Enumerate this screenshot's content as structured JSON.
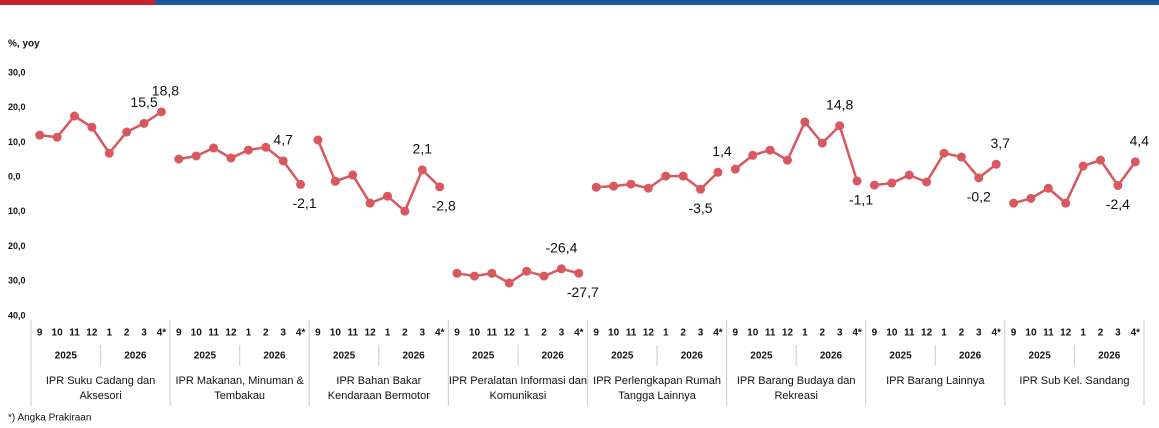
{
  "chart_data": {
    "type": "line",
    "y_label": "%, yoy",
    "ylim": [
      -40,
      30
    ],
    "yticks": [
      {
        "value": 30,
        "label": "30,0"
      },
      {
        "value": 20,
        "label": "20,0"
      },
      {
        "value": 10,
        "label": "10,0"
      },
      {
        "value": 0,
        "label": "0,0"
      },
      {
        "value": -10,
        "label": "10,0"
      },
      {
        "value": -20,
        "label": "20,0"
      },
      {
        "value": -30,
        "label": "30,0"
      },
      {
        "value": -40,
        "label": "40,0"
      }
    ],
    "categories": [
      "9",
      "10",
      "11",
      "12",
      "1",
      "2",
      "3",
      "4*"
    ],
    "years": [
      "2025",
      "2026"
    ],
    "color": "#d9575e",
    "series": [
      {
        "name": "IPR Suku Cadang dan Aksesori",
        "values": [
          12.1,
          11.5,
          17.6,
          14.4,
          6.9,
          13.0,
          15.5,
          18.8
        ],
        "value_labels": [
          null,
          null,
          null,
          null,
          null,
          null,
          "15,5",
          "18,8"
        ]
      },
      {
        "name": "IPR Makanan, Minuman & Tembakau",
        "values": [
          5.2,
          6.1,
          8.4,
          5.5,
          7.8,
          8.6,
          4.7,
          -2.1
        ],
        "value_labels": [
          null,
          null,
          null,
          null,
          null,
          null,
          "4,7",
          "-2,1"
        ]
      },
      {
        "name": "IPR Bahan Bakar Kendaraan Bermotor",
        "values": [
          10.7,
          -1.2,
          0.6,
          -7.5,
          -5.5,
          -9.8,
          2.1,
          -2.8
        ],
        "value_labels": [
          null,
          null,
          null,
          null,
          null,
          null,
          "2,1",
          "-2,8"
        ]
      },
      {
        "name": "IPR Peralatan Informasi dan Komunikasi",
        "values": [
          -27.7,
          -28.5,
          -27.7,
          -30.5,
          -27.1,
          -28.5,
          -26.4,
          -27.7
        ],
        "value_labels": [
          null,
          null,
          null,
          null,
          null,
          null,
          "-26,4",
          "-27,7"
        ]
      },
      {
        "name": "IPR Perlengkapan Rumah Tangga Lainnya",
        "values": [
          -2.9,
          -2.6,
          -2.0,
          -3.2,
          0.3,
          0.3,
          -3.5,
          1.4
        ],
        "value_labels": [
          null,
          null,
          null,
          null,
          null,
          null,
          "-3,5",
          "1,4"
        ]
      },
      {
        "name": "IPR Barang Budaya dan Rekreasi",
        "values": [
          2.3,
          6.3,
          7.8,
          4.9,
          15.9,
          9.8,
          14.8,
          -1.1
        ],
        "value_labels": [
          null,
          null,
          null,
          null,
          null,
          null,
          "14,8",
          "-1,1"
        ]
      },
      {
        "name": "IPR Barang Lainnya",
        "values": [
          -2.3,
          -1.7,
          0.6,
          -1.4,
          6.9,
          5.8,
          -0.2,
          3.7
        ],
        "value_labels": [
          null,
          null,
          null,
          null,
          null,
          null,
          "-0,2",
          "3,7"
        ]
      },
      {
        "name": "IPR  Sub Kel. Sandang",
        "values": [
          -7.5,
          -6.1,
          -3.2,
          -7.5,
          3.2,
          4.9,
          -2.4,
          4.4
        ],
        "value_labels": [
          null,
          null,
          null,
          null,
          null,
          null,
          "-2,4",
          "4,4"
        ]
      }
    ],
    "footnote": "*) Angka Prakiraan"
  }
}
